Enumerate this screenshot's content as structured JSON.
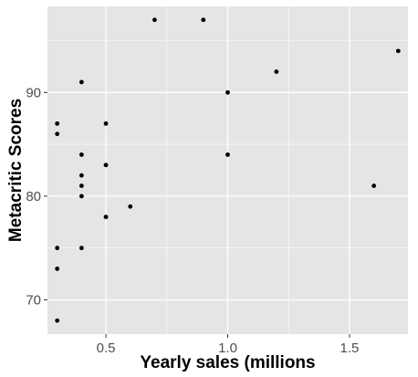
{
  "chart_data": {
    "type": "scatter",
    "xlabel": "Yearly sales (millions",
    "ylabel": "Metacritic Scores",
    "xlim": [
      0.26,
      1.74
    ],
    "ylim": [
      66.7,
      98.3
    ],
    "x_ticks": [
      0.5,
      1.0,
      1.5
    ],
    "x_tick_labels": [
      "0.5",
      "1.0",
      "1.5"
    ],
    "y_ticks": [
      70,
      80,
      90
    ],
    "y_tick_labels": [
      "70",
      "80",
      "90"
    ],
    "grid": true,
    "legend": "none",
    "colors": {
      "panel": "#e5e5e5",
      "grid": "#ffffff",
      "point": "#000000",
      "tick_text": "#4d4d4d"
    },
    "points": [
      {
        "x": 0.7,
        "y": 97
      },
      {
        "x": 0.9,
        "y": 97
      },
      {
        "x": 1.7,
        "y": 94
      },
      {
        "x": 1.2,
        "y": 92
      },
      {
        "x": 0.4,
        "y": 91
      },
      {
        "x": 1.0,
        "y": 90
      },
      {
        "x": 0.3,
        "y": 87
      },
      {
        "x": 0.5,
        "y": 87
      },
      {
        "x": 0.3,
        "y": 86
      },
      {
        "x": 0.4,
        "y": 84
      },
      {
        "x": 1.0,
        "y": 84
      },
      {
        "x": 0.5,
        "y": 83
      },
      {
        "x": 0.4,
        "y": 82
      },
      {
        "x": 0.4,
        "y": 81
      },
      {
        "x": 1.6,
        "y": 81
      },
      {
        "x": 0.4,
        "y": 80
      },
      {
        "x": 0.6,
        "y": 79
      },
      {
        "x": 0.5,
        "y": 78
      },
      {
        "x": 0.3,
        "y": 75
      },
      {
        "x": 0.4,
        "y": 75
      },
      {
        "x": 0.3,
        "y": 73
      },
      {
        "x": 0.3,
        "y": 68
      }
    ]
  }
}
